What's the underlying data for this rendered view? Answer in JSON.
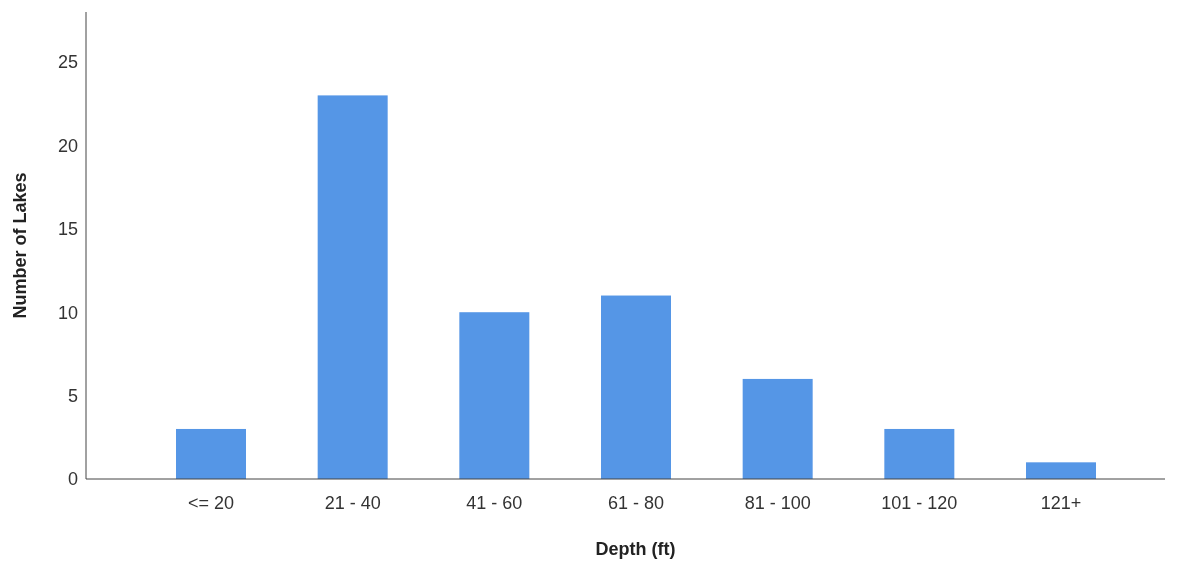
{
  "chart_data": {
    "type": "bar",
    "xlabel": "Depth (ft)",
    "ylabel": "Number of Lakes",
    "categories": [
      "<= 20",
      "21 - 40",
      "41 - 60",
      "61 - 80",
      "81 - 100",
      "101 - 120",
      "121+"
    ],
    "values": [
      3,
      23,
      10,
      11,
      6,
      3,
      1
    ],
    "color": "#5596e6",
    "ylim": [
      0,
      28
    ],
    "yticks": [
      0,
      5,
      10,
      15,
      20,
      25
    ],
    "grid": false
  }
}
